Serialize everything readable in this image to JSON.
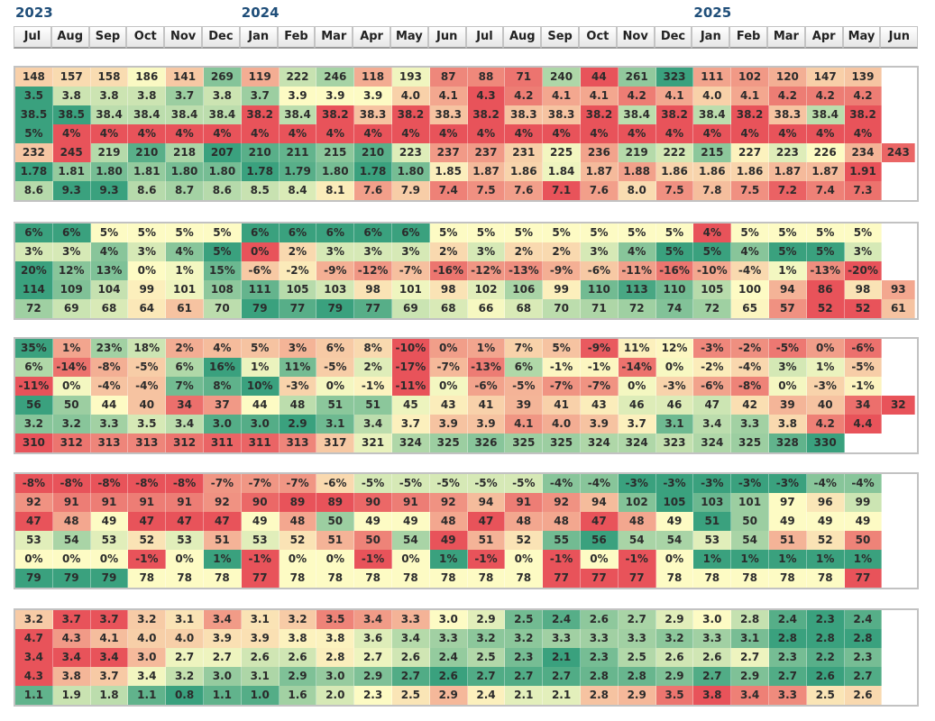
{
  "chart_data": {
    "type": "heatmap",
    "colors": {
      "low": "#e8535a",
      "mid": "#fdfbc4",
      "high": "#3aa17e"
    },
    "year_labels": [
      {
        "label": "2023",
        "col": 0
      },
      {
        "label": "2024",
        "col": 6
      },
      {
        "label": "2025",
        "col": 18
      }
    ],
    "columns": [
      "Jul",
      "Aug",
      "Sep",
      "Oct",
      "Nov",
      "Dec",
      "Jan",
      "Feb",
      "Mar",
      "Apr",
      "May",
      "Jun",
      "Jul",
      "Aug",
      "Sep",
      "Oct",
      "Nov",
      "Dec",
      "Jan",
      "Feb",
      "Mar",
      "Apr",
      "May",
      "Jun"
    ],
    "panels": [
      {
        "rows": [
          {
            "values": [
              "148",
              "157",
              "158",
              "186",
              "141",
              "269",
              "119",
              "222",
              "246",
              "118",
              "193",
              "87",
              "88",
              "71",
              "240",
              "44",
              "261",
              "323",
              "111",
              "102",
              "120",
              "147",
              "139",
              ""
            ]
          },
          {
            "values": [
              "3.5",
              "3.8",
              "3.8",
              "3.8",
              "3.7",
              "3.8",
              "3.7",
              "3.9",
              "3.9",
              "3.9",
              "4.0",
              "4.1",
              "4.3",
              "4.2",
              "4.1",
              "4.1",
              "4.2",
              "4.1",
              "4.0",
              "4.1",
              "4.2",
              "4.2",
              "4.2",
              ""
            ],
            "invert": true
          },
          {
            "values": [
              "38.5",
              "38.5",
              "38.4",
              "38.4",
              "38.4",
              "38.4",
              "38.2",
              "38.4",
              "38.2",
              "38.3",
              "38.2",
              "38.3",
              "38.2",
              "38.3",
              "38.3",
              "38.2",
              "38.4",
              "38.2",
              "38.4",
              "38.2",
              "38.3",
              "38.4",
              "38.2",
              ""
            ]
          },
          {
            "values": [
              "5%",
              "4%",
              "4%",
              "4%",
              "4%",
              "4%",
              "4%",
              "4%",
              "4%",
              "4%",
              "4%",
              "4%",
              "4%",
              "4%",
              "4%",
              "4%",
              "4%",
              "4%",
              "4%",
              "4%",
              "4%",
              "4%",
              "4%",
              ""
            ]
          },
          {
            "values": [
              "232",
              "245",
              "219",
              "210",
              "218",
              "207",
              "210",
              "211",
              "215",
              "210",
              "223",
              "237",
              "237",
              "231",
              "225",
              "236",
              "219",
              "222",
              "215",
              "227",
              "223",
              "226",
              "234",
              "243"
            ],
            "invert": true
          },
          {
            "values": [
              "1.78",
              "1.81",
              "1.80",
              "1.81",
              "1.80",
              "1.80",
              "1.78",
              "1.79",
              "1.80",
              "1.78",
              "1.80",
              "1.85",
              "1.87",
              "1.86",
              "1.84",
              "1.87",
              "1.88",
              "1.86",
              "1.86",
              "1.86",
              "1.87",
              "1.87",
              "1.91",
              ""
            ],
            "invert": true
          },
          {
            "values": [
              "8.6",
              "9.3",
              "9.3",
              "8.6",
              "8.7",
              "8.6",
              "8.5",
              "8.4",
              "8.1",
              "7.6",
              "7.9",
              "7.4",
              "7.5",
              "7.6",
              "7.1",
              "7.6",
              "8.0",
              "7.5",
              "7.8",
              "7.5",
              "7.2",
              "7.4",
              "7.3",
              ""
            ]
          }
        ]
      },
      {
        "rows": [
          {
            "values": [
              "6%",
              "6%",
              "5%",
              "5%",
              "5%",
              "5%",
              "6%",
              "6%",
              "6%",
              "6%",
              "6%",
              "5%",
              "5%",
              "5%",
              "5%",
              "5%",
              "5%",
              "5%",
              "4%",
              "5%",
              "5%",
              "5%",
              "5%",
              ""
            ]
          },
          {
            "values": [
              "3%",
              "3%",
              "4%",
              "3%",
              "4%",
              "5%",
              "0%",
              "2%",
              "3%",
              "3%",
              "3%",
              "2%",
              "3%",
              "2%",
              "2%",
              "3%",
              "4%",
              "5%",
              "5%",
              "4%",
              "5%",
              "5%",
              "3%",
              ""
            ]
          },
          {
            "values": [
              "20%",
              "12%",
              "13%",
              "0%",
              "1%",
              "15%",
              "-6%",
              "-2%",
              "-9%",
              "-12%",
              "-7%",
              "-16%",
              "-12%",
              "-13%",
              "-9%",
              "-6%",
              "-11%",
              "-16%",
              "-10%",
              "-4%",
              "1%",
              "-13%",
              "-20%",
              ""
            ]
          },
          {
            "values": [
              "114",
              "109",
              "104",
              "99",
              "101",
              "108",
              "111",
              "105",
              "103",
              "98",
              "101",
              "98",
              "102",
              "106",
              "99",
              "110",
              "113",
              "110",
              "105",
              "100",
              "94",
              "86",
              "98",
              "93"
            ]
          },
          {
            "values": [
              "72",
              "69",
              "68",
              "64",
              "61",
              "70",
              "79",
              "77",
              "79",
              "77",
              "69",
              "68",
              "66",
              "68",
              "70",
              "71",
              "72",
              "74",
              "72",
              "65",
              "57",
              "52",
              "52",
              "61"
            ]
          }
        ]
      },
      {
        "rows": [
          {
            "values": [
              "35%",
              "1%",
              "23%",
              "18%",
              "2%",
              "4%",
              "5%",
              "3%",
              "6%",
              "8%",
              "-10%",
              "0%",
              "1%",
              "7%",
              "5%",
              "-9%",
              "11%",
              "12%",
              "-3%",
              "-2%",
              "-5%",
              "0%",
              "-6%",
              ""
            ]
          },
          {
            "values": [
              "6%",
              "-14%",
              "-8%",
              "-5%",
              "6%",
              "16%",
              "1%",
              "11%",
              "-5%",
              "2%",
              "-17%",
              "-7%",
              "-13%",
              "6%",
              "-1%",
              "-1%",
              "-14%",
              "0%",
              "-2%",
              "-4%",
              "3%",
              "1%",
              "-5%",
              ""
            ]
          },
          {
            "values": [
              "-11%",
              "0%",
              "-4%",
              "-4%",
              "7%",
              "8%",
              "10%",
              "-3%",
              "0%",
              "-1%",
              "-11%",
              "0%",
              "-6%",
              "-5%",
              "-7%",
              "-7%",
              "0%",
              "-3%",
              "-6%",
              "-8%",
              "0%",
              "-3%",
              "-1%",
              ""
            ]
          },
          {
            "values": [
              "56",
              "50",
              "44",
              "40",
              "34",
              "37",
              "44",
              "48",
              "51",
              "51",
              "45",
              "43",
              "41",
              "39",
              "41",
              "43",
              "46",
              "46",
              "47",
              "42",
              "39",
              "40",
              "34",
              "32"
            ]
          },
          {
            "values": [
              "3.2",
              "3.2",
              "3.3",
              "3.5",
              "3.4",
              "3.0",
              "3.0",
              "2.9",
              "3.1",
              "3.4",
              "3.7",
              "3.9",
              "3.9",
              "4.1",
              "4.0",
              "3.9",
              "3.7",
              "3.1",
              "3.4",
              "3.3",
              "3.8",
              "4.2",
              "4.4",
              ""
            ],
            "invert": true
          },
          {
            "values": [
              "310",
              "312",
              "313",
              "313",
              "312",
              "311",
              "311",
              "313",
              "317",
              "321",
              "324",
              "325",
              "326",
              "325",
              "325",
              "324",
              "324",
              "323",
              "324",
              "325",
              "328",
              "330",
              "",
              ""
            ]
          }
        ]
      },
      {
        "rows": [
          {
            "values": [
              "-8%",
              "-8%",
              "-8%",
              "-8%",
              "-8%",
              "-7%",
              "-7%",
              "-7%",
              "-6%",
              "-5%",
              "-5%",
              "-5%",
              "-5%",
              "-5%",
              "-4%",
              "-4%",
              "-3%",
              "-3%",
              "-3%",
              "-3%",
              "-3%",
              "-4%",
              "-4%",
              ""
            ]
          },
          {
            "values": [
              "92",
              "91",
              "91",
              "91",
              "91",
              "92",
              "90",
              "89",
              "89",
              "90",
              "91",
              "92",
              "94",
              "91",
              "92",
              "94",
              "102",
              "105",
              "103",
              "101",
              "97",
              "96",
              "99",
              ""
            ]
          },
          {
            "values": [
              "47",
              "48",
              "49",
              "47",
              "47",
              "47",
              "49",
              "48",
              "50",
              "49",
              "49",
              "48",
              "47",
              "48",
              "48",
              "47",
              "48",
              "49",
              "51",
              "50",
              "49",
              "49",
              "49",
              ""
            ]
          },
          {
            "values": [
              "53",
              "54",
              "53",
              "52",
              "53",
              "51",
              "53",
              "52",
              "51",
              "50",
              "54",
              "49",
              "51",
              "52",
              "55",
              "56",
              "54",
              "54",
              "53",
              "54",
              "51",
              "52",
              "50",
              ""
            ]
          },
          {
            "values": [
              "0%",
              "0%",
              "0%",
              "-1%",
              "0%",
              "1%",
              "-1%",
              "0%",
              "0%",
              "-1%",
              "0%",
              "1%",
              "-1%",
              "0%",
              "-1%",
              "0%",
              "-1%",
              "0%",
              "1%",
              "1%",
              "1%",
              "1%",
              "1%",
              ""
            ]
          },
          {
            "values": [
              "79",
              "79",
              "79",
              "78",
              "78",
              "78",
              "77",
              "78",
              "78",
              "78",
              "78",
              "78",
              "78",
              "78",
              "77",
              "77",
              "77",
              "78",
              "78",
              "78",
              "78",
              "78",
              "77",
              ""
            ]
          }
        ]
      },
      {
        "rows": [
          {
            "values": [
              "3.2",
              "3.7",
              "3.7",
              "3.2",
              "3.1",
              "3.4",
              "3.1",
              "3.2",
              "3.5",
              "3.4",
              "3.3",
              "3.0",
              "2.9",
              "2.5",
              "2.4",
              "2.6",
              "2.7",
              "2.9",
              "3.0",
              "2.8",
              "2.4",
              "2.3",
              "2.4",
              ""
            ],
            "invert": true
          },
          {
            "values": [
              "4.7",
              "4.3",
              "4.1",
              "4.0",
              "4.0",
              "3.9",
              "3.9",
              "3.8",
              "3.8",
              "3.6",
              "3.4",
              "3.3",
              "3.2",
              "3.2",
              "3.3",
              "3.3",
              "3.3",
              "3.2",
              "3.3",
              "3.1",
              "2.8",
              "2.8",
              "2.8",
              ""
            ],
            "invert": true
          },
          {
            "values": [
              "3.4",
              "3.4",
              "3.4",
              "3.0",
              "2.7",
              "2.7",
              "2.6",
              "2.6",
              "2.8",
              "2.7",
              "2.6",
              "2.4",
              "2.5",
              "2.3",
              "2.1",
              "2.3",
              "2.5",
              "2.6",
              "2.6",
              "2.7",
              "2.3",
              "2.2",
              "2.3",
              ""
            ],
            "invert": true
          },
          {
            "values": [
              "4.3",
              "3.8",
              "3.7",
              "3.4",
              "3.2",
              "3.0",
              "3.1",
              "2.9",
              "3.0",
              "2.9",
              "2.7",
              "2.6",
              "2.7",
              "2.7",
              "2.7",
              "2.8",
              "2.8",
              "2.9",
              "2.7",
              "2.9",
              "2.7",
              "2.6",
              "2.7",
              ""
            ],
            "invert": true
          },
          {
            "values": [
              "1.1",
              "1.9",
              "1.8",
              "1.1",
              "0.8",
              "1.1",
              "1.0",
              "1.6",
              "2.0",
              "2.3",
              "2.5",
              "2.9",
              "2.4",
              "2.1",
              "2.1",
              "2.8",
              "2.9",
              "3.5",
              "3.8",
              "3.4",
              "3.3",
              "2.5",
              "2.6",
              ""
            ],
            "invert": true
          }
        ]
      }
    ]
  }
}
